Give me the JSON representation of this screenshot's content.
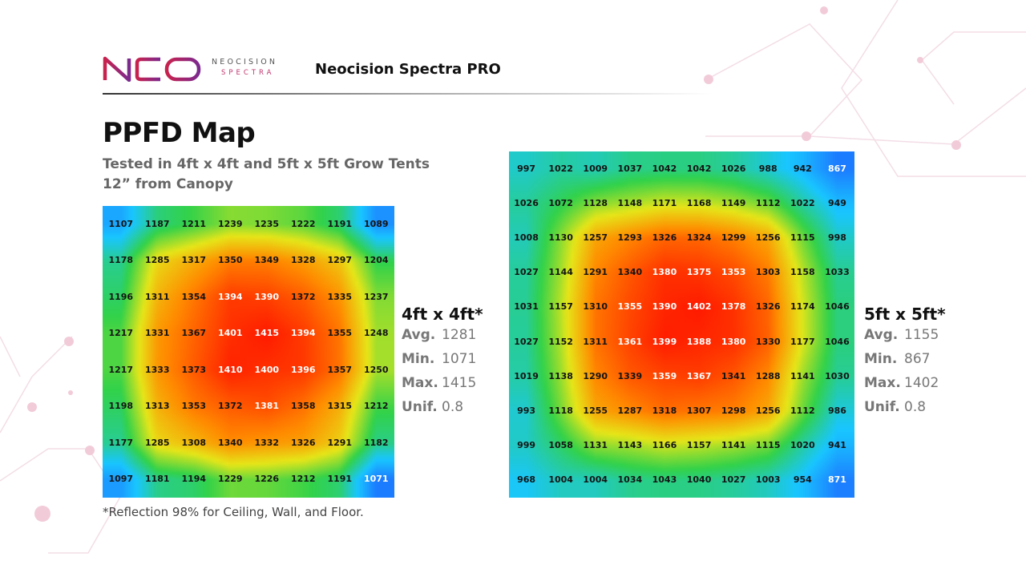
{
  "header": {
    "logo_text": "NEO",
    "brand_name": "NEOCISION",
    "brand_sub": "SPECTRA",
    "product_title": "Neocision Spectra PRO"
  },
  "page_title": "PPFD Map",
  "subtitle_line1": "Tested in 4ft x 4ft and 5ft x 5ft Grow Tents",
  "subtitle_line2": "12” from Canopy",
  "footnote": "*Reflection 98% for Ceiling, Wall, and Floor.",
  "colors": {
    "logo_gradient_start": "#c8224e",
    "logo_gradient_end": "#7b2a8f",
    "heatmap_scale": [
      "#1e5bff",
      "#19c6ff",
      "#32d24a",
      "#e6e619",
      "#ff8c00",
      "#ff1a00"
    ]
  },
  "chart_data": [
    {
      "type": "heatmap",
      "title": "4ft x 4ft*",
      "stats": [
        {
          "label": "Avg.",
          "value": "1281"
        },
        {
          "label": "Min.",
          "value": "1071"
        },
        {
          "label": "Max.",
          "value": "1415"
        },
        {
          "label": "Unif.",
          "value": "0.8"
        }
      ],
      "grid": [
        [
          1107,
          1187,
          1211,
          1239,
          1235,
          1222,
          1191,
          1089
        ],
        [
          1178,
          1285,
          1317,
          1350,
          1349,
          1328,
          1297,
          1204
        ],
        [
          1196,
          1311,
          1354,
          1394,
          1390,
          1372,
          1335,
          1237
        ],
        [
          1217,
          1331,
          1367,
          1401,
          1415,
          1394,
          1355,
          1248
        ],
        [
          1217,
          1333,
          1373,
          1410,
          1400,
          1396,
          1357,
          1250
        ],
        [
          1198,
          1313,
          1353,
          1372,
          1381,
          1358,
          1315,
          1212
        ],
        [
          1177,
          1285,
          1308,
          1340,
          1332,
          1326,
          1291,
          1182
        ],
        [
          1097,
          1181,
          1194,
          1229,
          1226,
          1212,
          1191,
          1071
        ]
      ]
    },
    {
      "type": "heatmap",
      "title": "5ft x 5ft*",
      "stats": [
        {
          "label": "Avg.",
          "value": "1155"
        },
        {
          "label": "Min.",
          "value": "867"
        },
        {
          "label": "Max.",
          "value": "1402"
        },
        {
          "label": "Unif.",
          "value": "0.8"
        }
      ],
      "grid": [
        [
          997,
          1022,
          1009,
          1037,
          1042,
          1042,
          1026,
          988,
          942,
          867
        ],
        [
          1026,
          1072,
          1128,
          1148,
          1171,
          1168,
          1149,
          1112,
          1022,
          949
        ],
        [
          1008,
          1130,
          1257,
          1293,
          1326,
          1324,
          1299,
          1256,
          1115,
          998
        ],
        [
          1027,
          1144,
          1291,
          1340,
          1380,
          1375,
          1353,
          1303,
          1158,
          1033
        ],
        [
          1031,
          1157,
          1310,
          1355,
          1390,
          1402,
          1378,
          1326,
          1174,
          1046
        ],
        [
          1027,
          1152,
          1311,
          1361,
          1399,
          1388,
          1380,
          1330,
          1177,
          1046
        ],
        [
          1019,
          1138,
          1290,
          1339,
          1359,
          1367,
          1341,
          1288,
          1141,
          1030
        ],
        [
          993,
          1118,
          1255,
          1287,
          1318,
          1307,
          1298,
          1256,
          1112,
          986
        ],
        [
          999,
          1058,
          1131,
          1143,
          1166,
          1157,
          1141,
          1115,
          1020,
          941
        ],
        [
          968,
          1004,
          1004,
          1034,
          1043,
          1040,
          1027,
          1003,
          954,
          871
        ]
      ]
    }
  ]
}
